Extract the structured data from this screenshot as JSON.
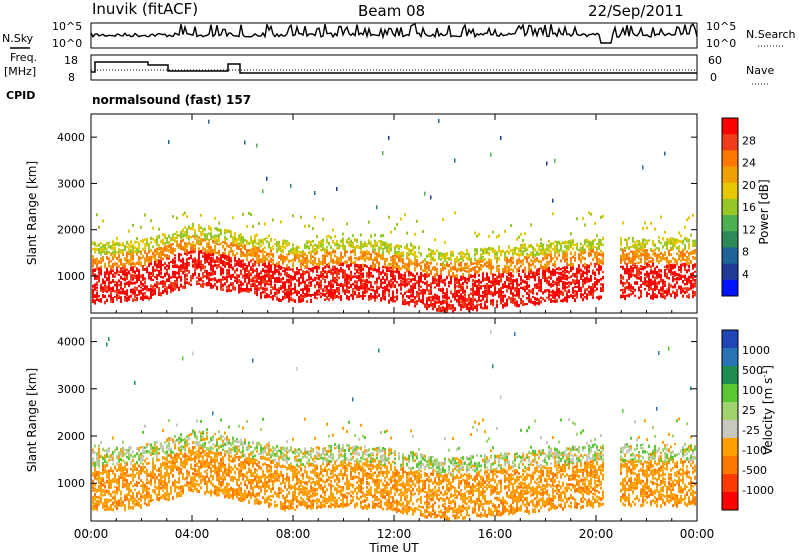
{
  "header": {
    "station": "Inuvik (fitACF)",
    "beam": "Beam 08",
    "date": "22/Sep/2011",
    "nsky_label": "N.Sky",
    "nsearch_label": "N.Search",
    "freq_label_1": "Freq.",
    "freq_label_2": "[MHz]",
    "nave_label": "Nave",
    "cpid_label": "CPID",
    "cpid_value": "normalsound (fast) 157",
    "noise_ticks": [
      "10^5",
      "10^0"
    ],
    "freq_ticks": [
      "18",
      "8"
    ],
    "nave_ticks": [
      "60",
      "0"
    ]
  },
  "chart_data": [
    {
      "type": "heatmap",
      "panel": "power",
      "ylabel": "Slant Range [km]",
      "ylim": [
        200,
        4500
      ],
      "yticks": [
        1000,
        2000,
        3000,
        4000
      ],
      "colorbar_label": "Power [dB]",
      "colorbar_ticks": [
        "28",
        "24",
        "20",
        "16",
        "12",
        "8",
        "4"
      ],
      "colors": [
        "#ff0000",
        "#f03c18",
        "#ff7800",
        "#f0a000",
        "#e6c800",
        "#96c828",
        "#4caf50",
        "#2e8b57",
        "#1e6496",
        "#1e3c96",
        "#0014ff"
      ],
      "scatter_band": {
        "center_km": [
          900,
          950,
          1300,
          1100,
          900,
          1000,
          900,
          700,
          800,
          900,
          1000
        ],
        "hours": [
          0,
          2,
          4,
          6,
          8,
          10,
          12,
          14,
          16,
          18,
          20
        ]
      }
    },
    {
      "type": "heatmap",
      "panel": "velocity",
      "ylabel": "Slant Range [km]",
      "ylim": [
        200,
        4500
      ],
      "yticks": [
        1000,
        2000,
        3000,
        4000
      ],
      "colorbar_label": "Velocity [m s",
      "colorbar_label_sup": "-1",
      "colorbar_label_end": "]",
      "colorbar_ticks": [
        "1000",
        "500",
        "100",
        "25",
        "-25",
        "-100",
        "-500",
        "-1000"
      ],
      "colors": [
        "#1e46b4",
        "#2873b4",
        "#1e8c50",
        "#5ac832",
        "#a0d26e",
        "#c8c8be",
        "#ffa000",
        "#ff7800",
        "#ff3c00",
        "#ff0000"
      ]
    }
  ],
  "x_axis": {
    "label": "Time UT",
    "ticks": [
      "00:00",
      "04:00",
      "08:00",
      "12:00",
      "16:00",
      "20:00",
      "00:00"
    ]
  }
}
